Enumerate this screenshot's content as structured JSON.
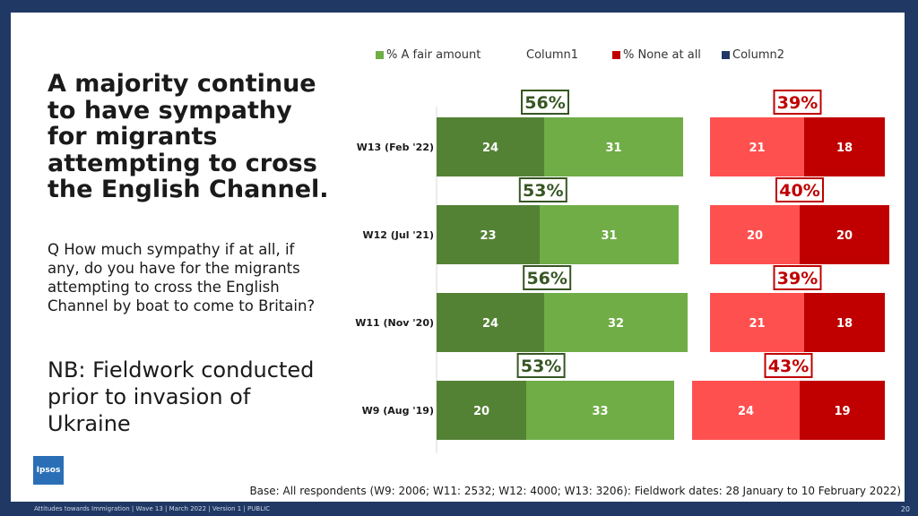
{
  "headline": "A majority continue to have sympathy for migrants attempting to cross the English Channel.",
  "question": "Q How much sympathy if at all, if any, do you have for the migrants attempting to cross the English Channel by boat to come to Britain?",
  "nb_note": "NB: Fieldwork conducted prior to invasion of Ukraine",
  "base_note": "Base: All respondents (W9: 2006; W11: 2532; W12: 4000; W13: 3206): Fieldwork dates: 28 January to 10 February 2022)",
  "footer": "Attitudes towards Immigration | Wave 13 | March 2022 | Version 1 | PUBLIC",
  "page_number": "20",
  "logo_text": "Ipsos",
  "colors": {
    "dark_green": "#548235",
    "light_green": "#70ad47",
    "light_red": "#ff5050",
    "dark_red": "#c00000",
    "gap": "#ffffff",
    "col2": "#1f3864",
    "green_total_text": "#375623",
    "red_total_text": "#c00000"
  },
  "legend": [
    {
      "label": "% A fair amount",
      "color": "#70ad47"
    },
    {
      "label": "Column1",
      "color": "#ffffff"
    },
    {
      "label": "% None at all",
      "color": "#c00000"
    },
    {
      "label": "Column2",
      "color": "#1f3864"
    }
  ],
  "chart_data": {
    "type": "bar",
    "orientation": "horizontal",
    "stacked": true,
    "categories": [
      "W13 (Feb '22)",
      "W12 (Jul '21)",
      "W11 (Nov '20)",
      "W9 (Aug '19)"
    ],
    "series": [
      {
        "name": "",
        "values": [
          24,
          23,
          24,
          20
        ],
        "color": "#548235"
      },
      {
        "name": "% A fair amount",
        "values": [
          31,
          31,
          32,
          33
        ],
        "color": "#70ad47"
      },
      {
        "name": "Column1",
        "values": [
          6,
          7,
          5,
          4
        ],
        "color": "#ffffff"
      },
      {
        "name": "",
        "values": [
          21,
          20,
          21,
          24
        ],
        "color": "#ff5050"
      },
      {
        "name": "% None at all",
        "values": [
          18,
          20,
          18,
          19
        ],
        "color": "#c00000"
      },
      {
        "name": "Column2",
        "values": [
          0,
          0,
          0,
          0
        ],
        "color": "#1f3864"
      }
    ],
    "green_totals": [
      "56%",
      "53%",
      "56%",
      "53%"
    ],
    "red_totals": [
      "39%",
      "40%",
      "39%",
      "43%"
    ],
    "xlim": [
      0,
      100
    ],
    "legend_position": "top"
  }
}
